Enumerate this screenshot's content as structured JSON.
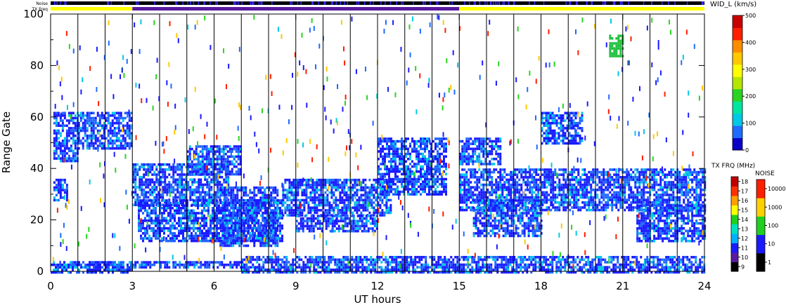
{
  "header": {
    "noise_label": "Noise",
    "txfreq_label": "TX Freq",
    "wid_label": "WID_L (km/s)"
  },
  "chart_data": {
    "type": "heatmap",
    "xlabel": "UT hours",
    "ylabel": "Range Gate",
    "xlim": [
      0,
      24
    ],
    "ylim": [
      0,
      100
    ],
    "x_ticks": [
      "0",
      "3",
      "6",
      "9",
      "12",
      "15",
      "18",
      "21",
      "24"
    ],
    "y_ticks": [
      "0",
      "20",
      "40",
      "60",
      "80",
      "100"
    ],
    "vertical_gridlines_hours": [
      1,
      2,
      3,
      4,
      5,
      6,
      7,
      8,
      9,
      10,
      11,
      12,
      13,
      14,
      15,
      16,
      17,
      18,
      19,
      20,
      21,
      22,
      23
    ],
    "txfreq_bar": [
      {
        "start": 0,
        "end": 3,
        "color": "#ffff00"
      },
      {
        "start": 3,
        "end": 15,
        "color": "#5a1aa0"
      },
      {
        "start": 15,
        "end": 24,
        "color": "#ffff00"
      }
    ],
    "scatter_regions": [
      {
        "x0": 0.1,
        "x1": 1.0,
        "y0": 43,
        "y1": 62,
        "color": "#1a1aff"
      },
      {
        "x0": 1.0,
        "x1": 3.0,
        "y0": 48,
        "y1": 62,
        "color": "#1a1aff"
      },
      {
        "x0": 0.1,
        "x1": 0.6,
        "y0": 28,
        "y1": 36,
        "color": "#1a1aff"
      },
      {
        "x0": 3.0,
        "x1": 6.5,
        "y0": 26,
        "y1": 42,
        "color": "#1a1aff"
      },
      {
        "x0": 5.0,
        "x1": 7.0,
        "y0": 38,
        "y1": 49,
        "color": "#1a1aff"
      },
      {
        "x0": 3.2,
        "x1": 8.5,
        "y0": 12,
        "y1": 28,
        "color": "#1a1aff"
      },
      {
        "x0": 6.2,
        "x1": 8.3,
        "y0": 10,
        "y1": 33,
        "color": "#1a1aff"
      },
      {
        "x0": 8.5,
        "x1": 12.5,
        "y0": 22,
        "y1": 36,
        "color": "#1a1aff"
      },
      {
        "x0": 9.0,
        "x1": 12.0,
        "y0": 16,
        "y1": 22,
        "color": "#1a1aff"
      },
      {
        "x0": 12.0,
        "x1": 14.5,
        "y0": 30,
        "y1": 52,
        "color": "#1a1aff"
      },
      {
        "x0": 15.0,
        "x1": 16.5,
        "y0": 42,
        "y1": 52,
        "color": "#1a1aff"
      },
      {
        "x0": 15.0,
        "x1": 24.0,
        "y0": 24,
        "y1": 40,
        "color": "#1a1aff"
      },
      {
        "x0": 15.5,
        "x1": 18.0,
        "y0": 14,
        "y1": 28,
        "color": "#1a1aff"
      },
      {
        "x0": 21.5,
        "x1": 24.0,
        "y0": 12,
        "y1": 26,
        "color": "#1a1aff"
      },
      {
        "x0": 18.0,
        "x1": 19.5,
        "y0": 50,
        "y1": 62,
        "color": "#1a1aff"
      },
      {
        "x0": 0.0,
        "x1": 3.0,
        "y0": 0,
        "y1": 4,
        "color": "#1a1aff"
      },
      {
        "x0": 3.0,
        "x1": 7.0,
        "y0": 2,
        "y1": 4,
        "color": "#1a1aff"
      },
      {
        "x0": 7.0,
        "x1": 24.0,
        "y0": 0,
        "y1": 6,
        "color": "#1a1aff"
      },
      {
        "x0": 20.5,
        "x1": 21.0,
        "y0": 84,
        "y1": 92,
        "color": "#22c040"
      }
    ],
    "wid_colorbar": {
      "title": "WID_L (km/s)",
      "ticks": [
        "0",
        "100",
        "200",
        "300",
        "400",
        "500"
      ],
      "colors": [
        "#0a00c8",
        "#1e6bff",
        "#00c8e6",
        "#00e6a0",
        "#2ad420",
        "#b4e600",
        "#ffff00",
        "#ffc800",
        "#ff8c00",
        "#ff1e00",
        "#c80000"
      ]
    },
    "txfrq_colorbar": {
      "title": "TX FRQ (MHz)",
      "ticks": [
        "9",
        "10",
        "11",
        "12",
        "13",
        "14",
        "15",
        "16",
        "17",
        "18"
      ],
      "colors": [
        "#000000",
        "#5a1aa0",
        "#1a1aff",
        "#00b0ff",
        "#00e0c0",
        "#20d020",
        "#ffff00",
        "#ffa000",
        "#ff3000",
        "#c00000"
      ]
    },
    "noise_colorbar": {
      "title": "NOISE",
      "ticks": [
        "1",
        "10",
        "100",
        "1000",
        "10000"
      ],
      "colors": [
        "#000000",
        "#1a1aff",
        "#20d020",
        "#ffd000",
        "#ff1e00"
      ]
    }
  }
}
